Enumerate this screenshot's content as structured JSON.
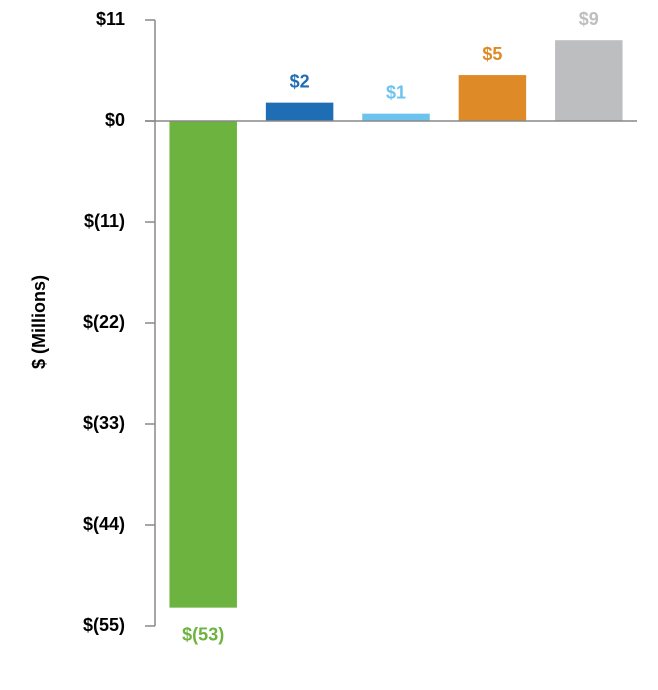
{
  "chart_data": {
    "type": "bar",
    "ylabel": "$ (Millions)",
    "categories": [
      null,
      null,
      null,
      null,
      null
    ],
    "values": [
      -53,
      2,
      0.8,
      5,
      8.8
    ],
    "value_labels": [
      "$(53)",
      "$2",
      "$1",
      "$5",
      "$9"
    ],
    "colors": [
      "#6cb33f",
      "#1f6db5",
      "#6cc4ee",
      "#dd8a27",
      "#bdbec0"
    ],
    "ylim": [
      -55,
      11
    ],
    "yticks": [
      {
        "value": 11,
        "label": "$11"
      },
      {
        "value": 0,
        "label": "$0"
      },
      {
        "value": -11,
        "label": "$(11)"
      },
      {
        "value": -22,
        "label": "$(22)"
      },
      {
        "value": -33,
        "label": "$(33)"
      },
      {
        "value": -44,
        "label": "$(44)"
      },
      {
        "value": -55,
        "label": "$(55)"
      }
    ]
  }
}
